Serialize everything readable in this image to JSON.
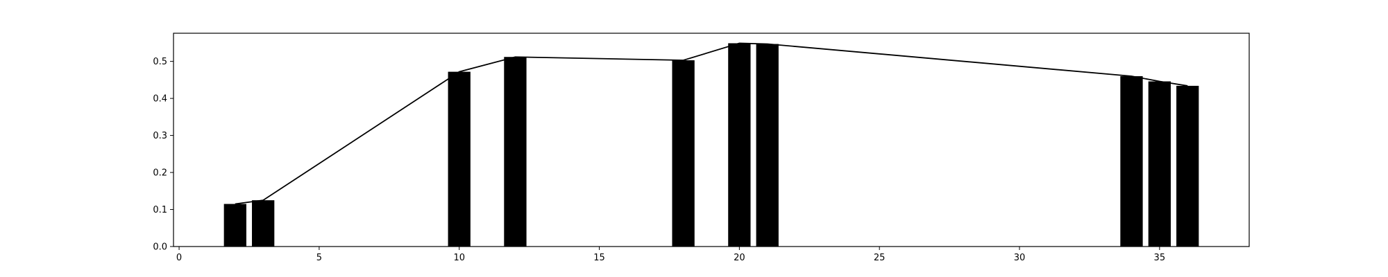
{
  "chart_data": {
    "type": "bar",
    "title": "",
    "xlabel": "",
    "ylabel": "",
    "xlim": [
      -0.2,
      38.2
    ],
    "ylim": [
      0.0,
      0.576
    ],
    "grid": false,
    "x_ticks": [
      0,
      5,
      10,
      15,
      20,
      25,
      30,
      35
    ],
    "y_ticks": [
      "0.0",
      "0.1",
      "0.2",
      "0.3",
      "0.4",
      "0.5"
    ],
    "bar_width": 0.8,
    "bars": {
      "x": [
        2,
        3,
        10,
        12,
        18,
        20,
        21,
        34,
        35,
        36
      ],
      "values": [
        0.115,
        0.125,
        0.472,
        0.512,
        0.503,
        0.549,
        0.547,
        0.46,
        0.446,
        0.434
      ]
    },
    "line": {
      "x": [
        2,
        3,
        10,
        12,
        18,
        20,
        21,
        34,
        35,
        36
      ],
      "values": [
        0.115,
        0.125,
        0.472,
        0.512,
        0.503,
        0.549,
        0.547,
        0.46,
        0.446,
        0.434
      ]
    },
    "colors": {
      "bar": "#000000",
      "line": "#000000",
      "axes": "#000000",
      "background": "#ffffff"
    }
  }
}
